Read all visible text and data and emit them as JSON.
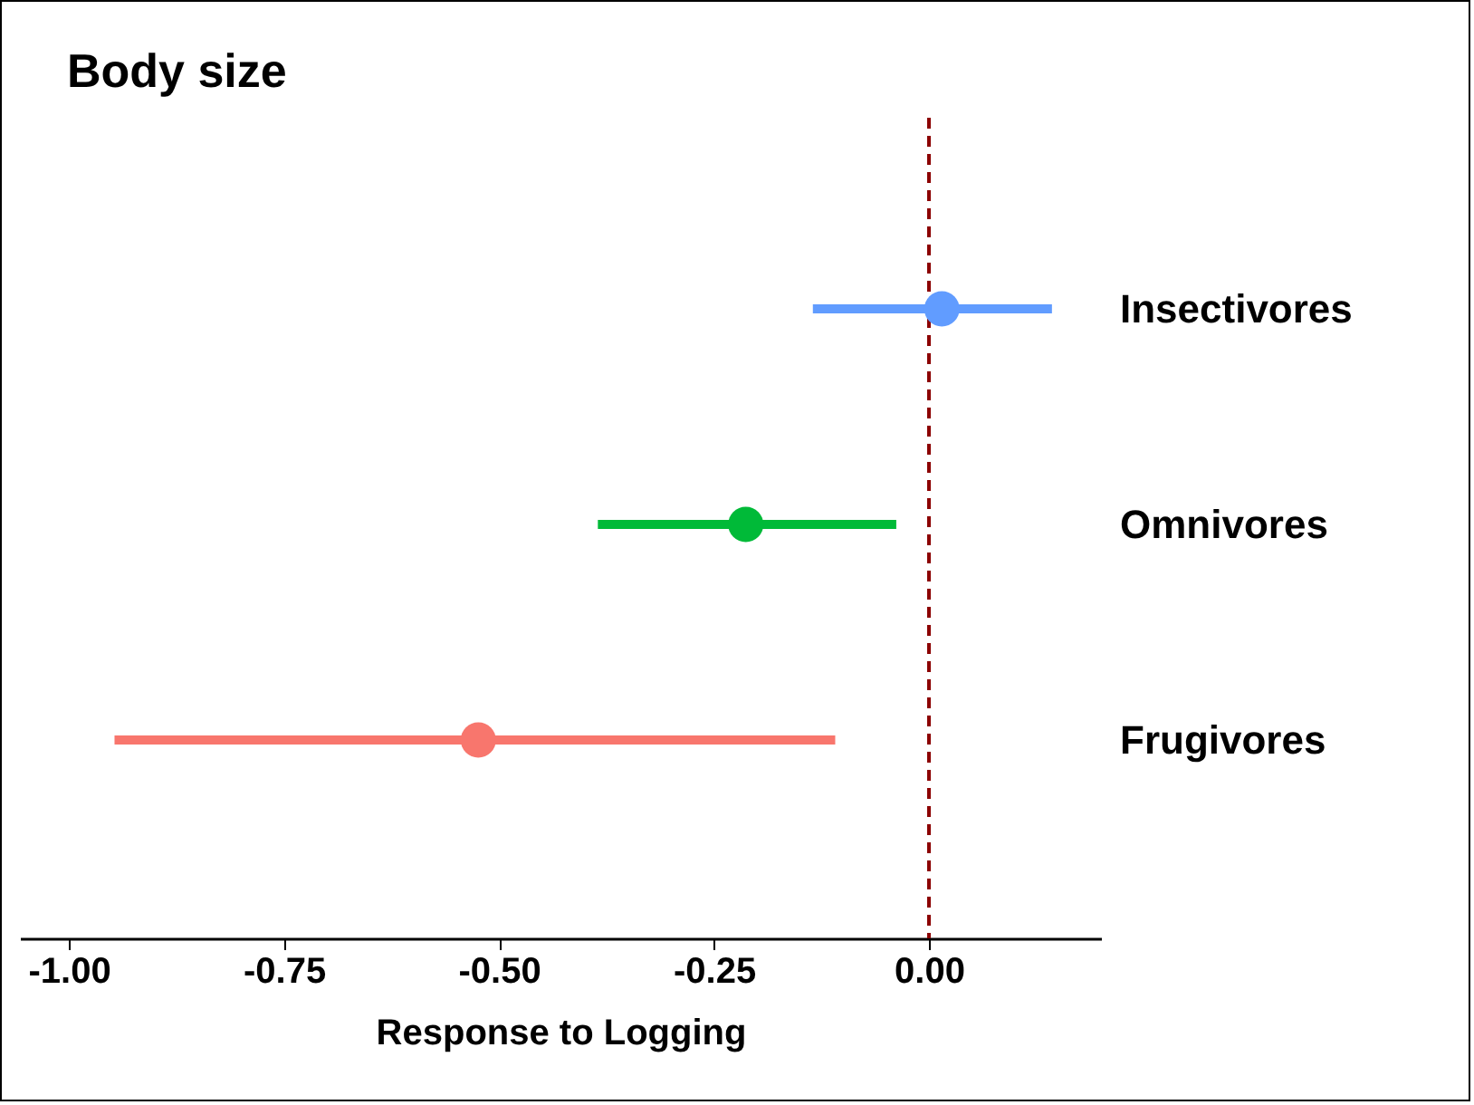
{
  "chart_data": {
    "type": "scatter",
    "orientation": "horizontal",
    "title": "Body size",
    "xlabel": "Response to Logging",
    "categories": [
      "Insectivores",
      "Omnivores",
      "Frugivores"
    ],
    "values": [
      0.015,
      -0.213,
      -0.524
    ],
    "errors": [
      [
        -0.135,
        0.143
      ],
      [
        -0.385,
        -0.038
      ],
      [
        -0.947,
        -0.109
      ]
    ],
    "colors": [
      "#619cff",
      "#00ba38",
      "#f8766d"
    ],
    "xlim": [
      -1.057,
      0.2
    ],
    "xticks": [
      {
        "value": -1,
        "label": "-1.00"
      },
      {
        "value": -0.75,
        "label": "-0.75"
      },
      {
        "value": -0.5,
        "label": "-0.50"
      },
      {
        "value": -0.25,
        "label": "-0.25"
      },
      {
        "value": 0,
        "label": "0.00"
      }
    ],
    "ref_lines": [
      {
        "axis": "x",
        "value": 0,
        "color": "#8b0000",
        "line_style": "dashed"
      }
    ],
    "marker": "circle",
    "grid": false,
    "legend": false
  }
}
